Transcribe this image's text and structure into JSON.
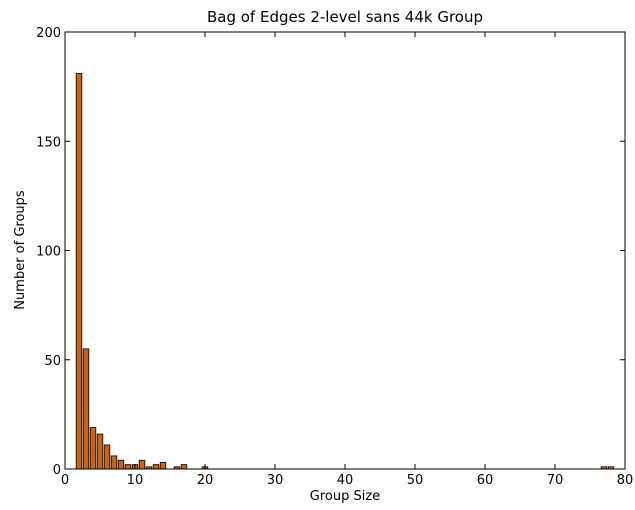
{
  "chart_data": {
    "type": "bar",
    "title": "Bag of Edges 2-level sans 44k Group",
    "xlabel": "Group Size",
    "ylabel": "Number of Groups",
    "xlim": [
      0,
      80
    ],
    "ylim": [
      0,
      200
    ],
    "xticks": [
      "0",
      "10",
      "20",
      "30",
      "40",
      "50",
      "60",
      "70",
      "80"
    ],
    "yticks": [
      "0",
      "50",
      "100",
      "150",
      "200"
    ],
    "bar_width": 0.8,
    "grid": false,
    "colors": {
      "bar_fill": "#c86414",
      "bar_edge": "#000000"
    },
    "bars": [
      {
        "x": 2,
        "y": 181
      },
      {
        "x": 3,
        "y": 55
      },
      {
        "x": 4,
        "y": 19
      },
      {
        "x": 5,
        "y": 16
      },
      {
        "x": 6,
        "y": 11
      },
      {
        "x": 7,
        "y": 6
      },
      {
        "x": 8,
        "y": 4
      },
      {
        "x": 9,
        "y": 2
      },
      {
        "x": 10,
        "y": 2
      },
      {
        "x": 11,
        "y": 4
      },
      {
        "x": 12,
        "y": 1
      },
      {
        "x": 13,
        "y": 2
      },
      {
        "x": 14,
        "y": 3
      },
      {
        "x": 16,
        "y": 1
      },
      {
        "x": 17,
        "y": 2
      },
      {
        "x": 20,
        "y": 1
      },
      {
        "x": 77,
        "y": 1
      },
      {
        "x": 78,
        "y": 1
      }
    ]
  }
}
